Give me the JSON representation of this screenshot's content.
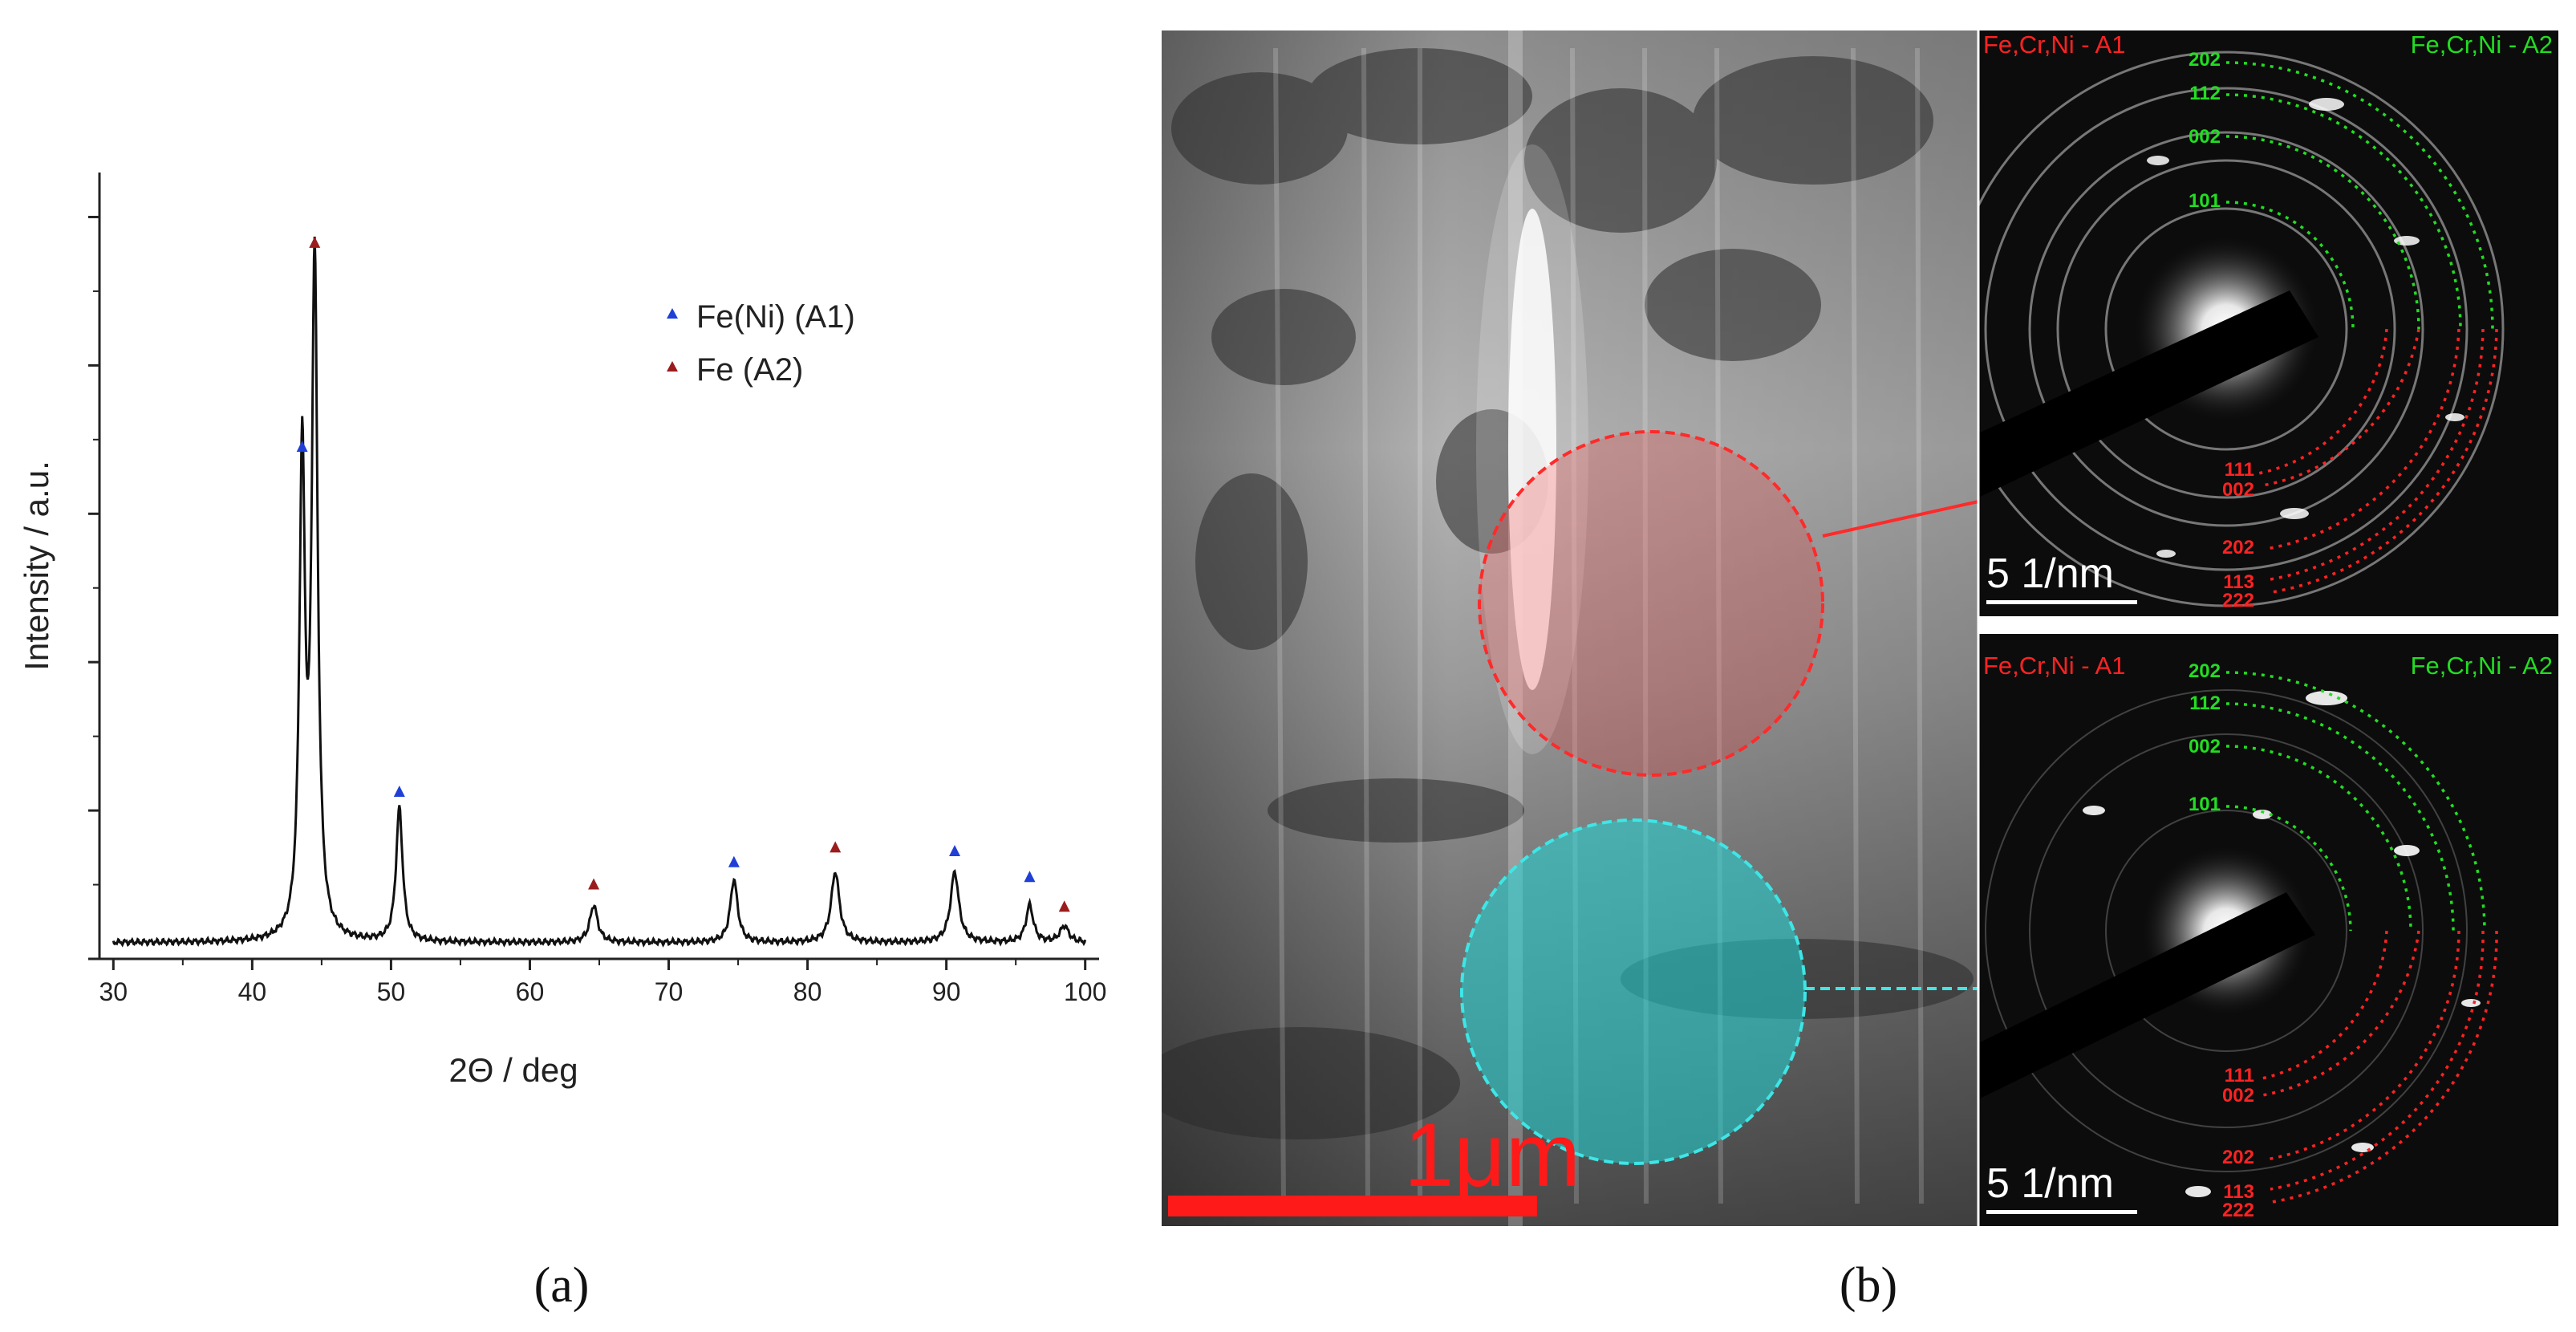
{
  "panel_a": {
    "caption": "(a)",
    "chart_data": {
      "type": "line",
      "title": "",
      "xlabel": "2Θ / deg",
      "ylabel": "Intensity / a.u.",
      "xlim": [
        29,
        101
      ],
      "ylim": [
        0,
        1.06
      ],
      "x_ticks": [
        30,
        40,
        50,
        60,
        70,
        80,
        90,
        100
      ],
      "x_tick_labels": [
        "30",
        "40",
        "50",
        "60",
        "70",
        "80",
        "90",
        "100"
      ],
      "legend_position": "top-right",
      "baseline": 0.022,
      "peaks": [
        {
          "two_theta": 43.6,
          "intensity": 0.64,
          "width": 0.32,
          "phase": "A1"
        },
        {
          "two_theta": 44.5,
          "intensity": 0.91,
          "width": 0.34,
          "phase": "A2"
        },
        {
          "two_theta": 50.6,
          "intensity": 0.18,
          "width": 0.38,
          "phase": "A1"
        },
        {
          "two_theta": 64.6,
          "intensity": 0.05,
          "width": 0.45,
          "phase": "A2"
        },
        {
          "two_theta": 74.7,
          "intensity": 0.085,
          "width": 0.42,
          "phase": "A1"
        },
        {
          "two_theta": 82.0,
          "intensity": 0.095,
          "width": 0.48,
          "phase": "A2"
        },
        {
          "two_theta": 90.6,
          "intensity": 0.095,
          "width": 0.48,
          "phase": "A1"
        },
        {
          "two_theta": 96.0,
          "intensity": 0.05,
          "width": 0.42,
          "phase": "A1"
        },
        {
          "two_theta": 98.5,
          "intensity": 0.022,
          "width": 0.5,
          "phase": "A2"
        }
      ],
      "markers": [
        {
          "x": 43.6,
          "y": 0.69,
          "series": "A1"
        },
        {
          "x": 44.5,
          "y": 0.965,
          "series": "A2"
        },
        {
          "x": 50.6,
          "y": 0.225,
          "series": "A1"
        },
        {
          "x": 64.6,
          "y": 0.1,
          "series": "A2"
        },
        {
          "x": 74.7,
          "y": 0.13,
          "series": "A1"
        },
        {
          "x": 82.0,
          "y": 0.15,
          "series": "A2"
        },
        {
          "x": 90.6,
          "y": 0.145,
          "series": "A1"
        },
        {
          "x": 96.0,
          "y": 0.11,
          "series": "A1"
        },
        {
          "x": 98.5,
          "y": 0.07,
          "series": "A2"
        }
      ],
      "series": [
        {
          "key": "A1",
          "name": "Fe(Ni) (A1)",
          "color": "#1f3fd6"
        },
        {
          "key": "A2",
          "name": "Fe (A2)",
          "color": "#9b1c1c"
        }
      ]
    }
  },
  "panel_b": {
    "caption": "(b)",
    "scale_bar_label": "1μm",
    "saed_top": {
      "phase_left": "Fe,Cr,Ni - A1",
      "phase_right": "Fe,Cr,Ni - A2",
      "green_labels": [
        "202",
        "112",
        "002",
        "101"
      ],
      "red_labels": [
        "111",
        "002",
        "202",
        "113",
        "222"
      ],
      "scale_label": "5 1/nm"
    },
    "saed_bottom": {
      "phase_left": "Fe,Cr,Ni - A1",
      "phase_right": "Fe,Cr,Ni - A2",
      "green_labels": [
        "202",
        "112",
        "002",
        "101"
      ],
      "red_labels": [
        "111",
        "002",
        "202",
        "113",
        "222"
      ],
      "scale_label": "5 1/nm"
    },
    "colors": {
      "red_region": "#ff2a2a",
      "cyan_region": "#1fd6d6",
      "green_index": "#22dd22",
      "red_index": "#ff2222"
    }
  }
}
